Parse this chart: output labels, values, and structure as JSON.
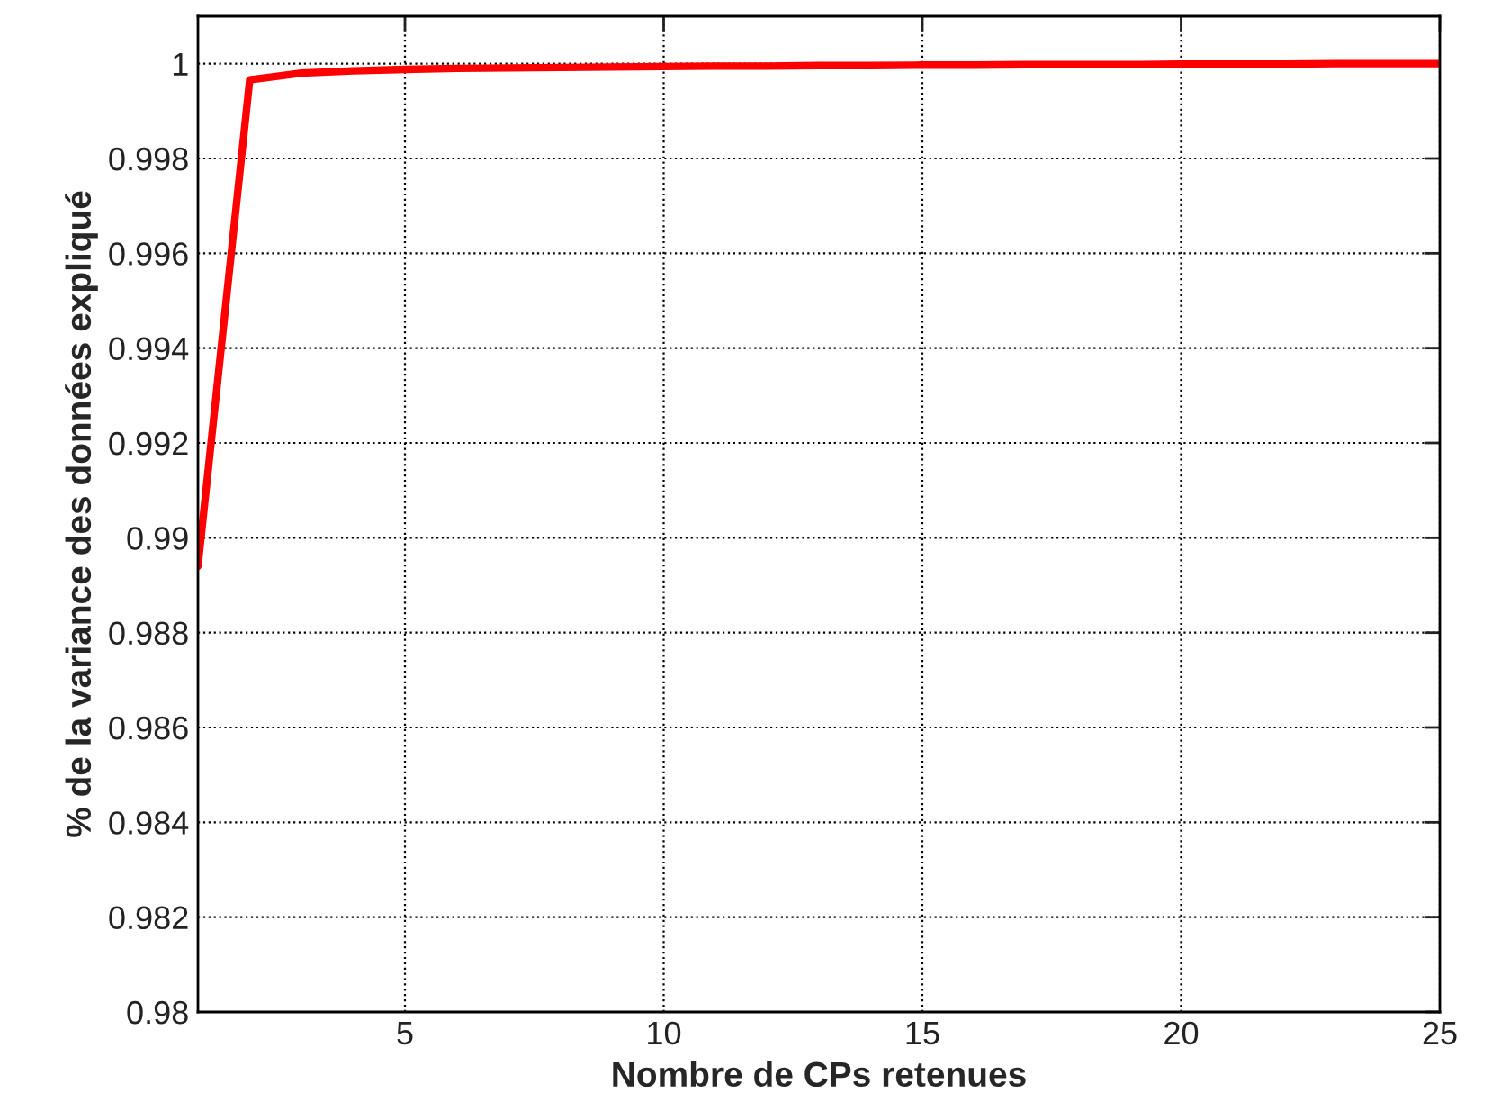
{
  "chart_data": {
    "type": "line",
    "xlabel": "Nombre de CPs retenues",
    "ylabel": "% de la variance des données expliqué",
    "x": [
      1,
      2,
      3,
      4,
      5,
      6,
      7,
      8,
      9,
      10,
      11,
      12,
      13,
      14,
      15,
      16,
      17,
      18,
      19,
      20,
      21,
      22,
      23,
      24,
      25
    ],
    "series": [
      {
        "color": "#ff0000",
        "values": [
          0.9894,
          0.99966,
          0.9998,
          0.99985,
          0.99988,
          0.9999,
          0.99991,
          0.99992,
          0.99993,
          0.99994,
          0.99995,
          0.99995,
          0.99996,
          0.99996,
          0.99997,
          0.99997,
          0.99998,
          0.99998,
          0.99998,
          0.99999,
          0.99999,
          0.99999,
          1.0,
          1.0,
          1.0
        ]
      }
    ],
    "xlim": [
      1,
      25
    ],
    "ylim": [
      0.98,
      1.001
    ],
    "xticks": [
      5,
      10,
      15,
      20,
      25
    ],
    "yticks": [
      0.98,
      0.982,
      0.984,
      0.986,
      0.988,
      0.99,
      0.992,
      0.994,
      0.996,
      0.998,
      1
    ],
    "grid": true,
    "line_style": "solid",
    "marker": "none"
  }
}
